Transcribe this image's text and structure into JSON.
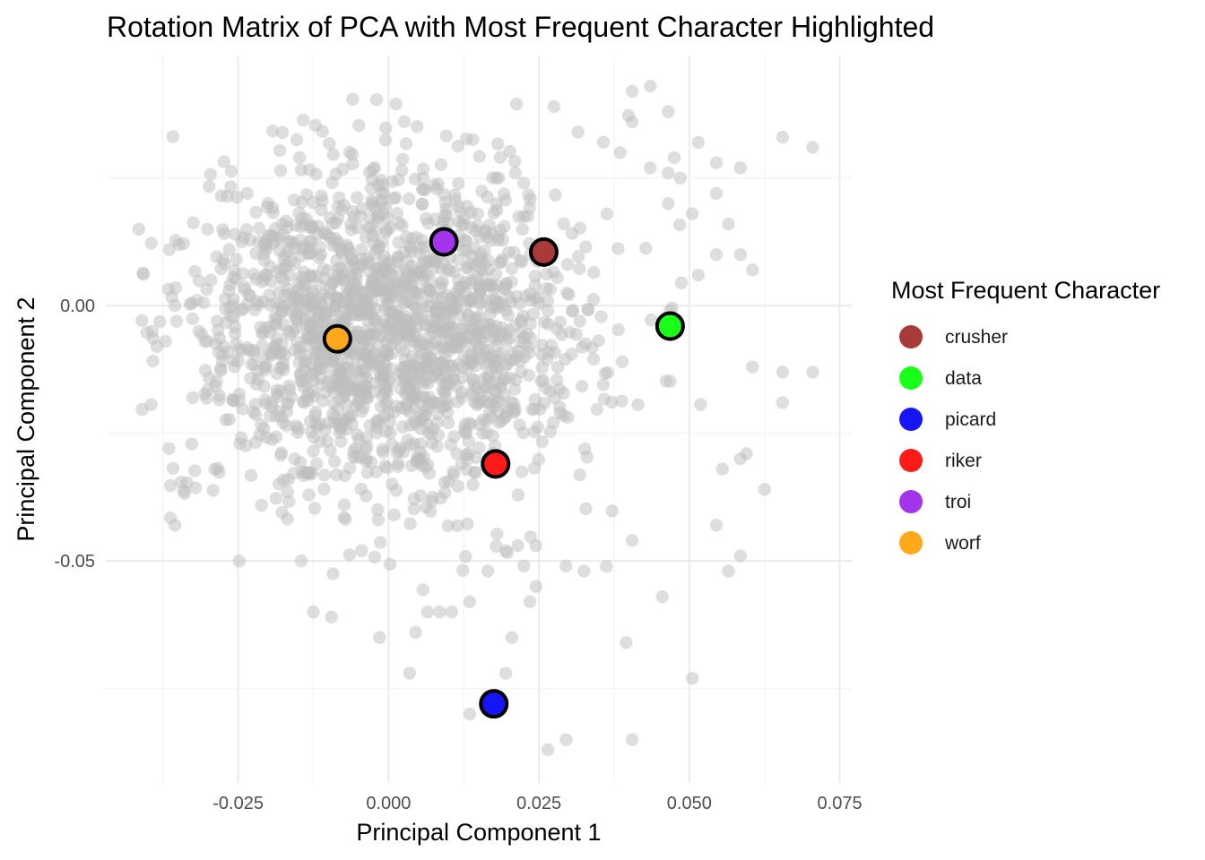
{
  "chart_data": {
    "type": "scatter",
    "title": "Rotation Matrix of PCA with Most Frequent Character Highlighted",
    "xlabel": "Principal Component 1",
    "ylabel": "Principal Component 2",
    "xlim": [
      -0.047,
      0.077
    ],
    "ylim": [
      -0.0935,
      0.049
    ],
    "x_ticks": [
      -0.025,
      0.0,
      0.025,
      0.05,
      0.075
    ],
    "x_tick_labels": [
      "-0.025",
      "0.000",
      "0.025",
      "0.050",
      "0.075"
    ],
    "y_ticks": [
      0.0,
      -0.05
    ],
    "y_tick_labels": [
      "0.00",
      "-0.05"
    ],
    "grid": true,
    "background": {
      "color": "#bebebe",
      "opacity": 0.5,
      "count": 1800,
      "center": [
        0.0,
        -0.005
      ],
      "spread": [
        0.016,
        0.016
      ],
      "seed": 2024
    },
    "background_points": [
      [
        -0.0415,
        0.015
      ],
      [
        0.0655,
        0.033
      ],
      [
        0.0705,
        0.031
      ],
      [
        0.0435,
        0.043
      ],
      [
        0.0405,
        0.042
      ],
      [
        0.0465,
        0.038
      ],
      [
        0.0405,
        0.036
      ],
      [
        0.0275,
        0.039
      ],
      [
        0.0315,
        0.034
      ],
      [
        0.0385,
        0.03
      ],
      [
        -0.0355,
        -0.043
      ],
      [
        -0.0365,
        -0.028
      ],
      [
        -0.0385,
        -0.008
      ],
      [
        -0.0355,
        0.0
      ],
      [
        -0.0315,
        -0.005
      ],
      [
        0.0405,
        -0.085
      ],
      [
        0.0265,
        -0.087
      ],
      [
        0.0295,
        -0.085
      ],
      [
        0.0195,
        -0.072
      ],
      [
        0.0135,
        -0.08
      ],
      [
        0.0505,
        -0.073
      ],
      [
        0.0395,
        -0.066
      ],
      [
        0.0455,
        -0.057
      ],
      [
        0.0565,
        -0.052
      ],
      [
        0.0585,
        -0.049
      ],
      [
        0.0655,
        -0.019
      ],
      [
        0.0705,
        -0.013
      ],
      [
        0.0655,
        -0.013
      ],
      [
        0.0605,
        -0.012
      ],
      [
        0.0595,
        -0.029
      ],
      [
        0.0625,
        -0.036
      ],
      [
        0.0585,
        -0.03
      ],
      [
        0.0555,
        -0.032
      ],
      [
        0.0405,
        -0.046
      ],
      [
        0.0545,
        -0.043
      ],
      [
        -0.0125,
        -0.06
      ],
      [
        -0.0095,
        -0.061
      ],
      [
        -0.0145,
        -0.05
      ],
      [
        -0.0015,
        -0.065
      ],
      [
        0.0045,
        -0.064
      ],
      [
        0.0035,
        -0.072
      ],
      [
        0.0065,
        -0.06
      ],
      [
        0.0085,
        -0.06
      ],
      [
        0.0105,
        -0.06
      ],
      [
        0.0135,
        -0.058
      ],
      [
        0.0205,
        -0.065
      ],
      [
        0.0235,
        -0.058
      ],
      [
        0.0245,
        -0.055
      ],
      [
        0.0225,
        -0.051
      ],
      [
        0.0295,
        -0.051
      ],
      [
        0.0325,
        -0.052
      ],
      [
        0.0215,
        -0.047
      ],
      [
        0.0245,
        -0.047
      ],
      [
        0.0195,
        -0.048
      ],
      [
        0.0165,
        -0.052
      ],
      [
        -0.0275,
        0.009
      ],
      [
        -0.0235,
        0.022
      ],
      [
        -0.0255,
        0.014
      ],
      [
        -0.0295,
        0.005
      ],
      [
        -0.0285,
        -0.003
      ],
      [
        0.0465,
        0.02
      ],
      [
        0.0545,
        0.022
      ],
      [
        0.0565,
        0.016
      ],
      [
        0.0585,
        0.01
      ],
      [
        0.0605,
        0.007
      ],
      [
        0.0515,
        0.006
      ],
      [
        0.0545,
        0.01
      ],
      [
        0.0505,
        0.018
      ],
      [
        0.0485,
        0.025
      ],
      [
        0.0545,
        0.028
      ],
      [
        0.0585,
        0.027
      ],
      [
        0.0435,
        0.027
      ],
      [
        0.0465,
        0.026
      ],
      [
        0.0475,
        0.029
      ],
      [
        0.0515,
        0.032
      ]
    ],
    "highlights": {
      "title": "Most Frequent Character",
      "entries": [
        {
          "name": "crusher",
          "color": "#a83a3a",
          "x": 0.0258,
          "y": 0.0105
        },
        {
          "name": "data",
          "color": "#1aff1a",
          "x": 0.0468,
          "y": -0.004
        },
        {
          "name": "picard",
          "color": "#1515f5",
          "x": 0.0175,
          "y": -0.078
        },
        {
          "name": "riker",
          "color": "#ff1a1a",
          "x": 0.0178,
          "y": -0.031
        },
        {
          "name": "troi",
          "color": "#a234ec",
          "x": 0.0092,
          "y": 0.0125
        },
        {
          "name": "worf",
          "color": "#ffa91a",
          "x": -0.0085,
          "y": -0.0065
        }
      ]
    }
  }
}
